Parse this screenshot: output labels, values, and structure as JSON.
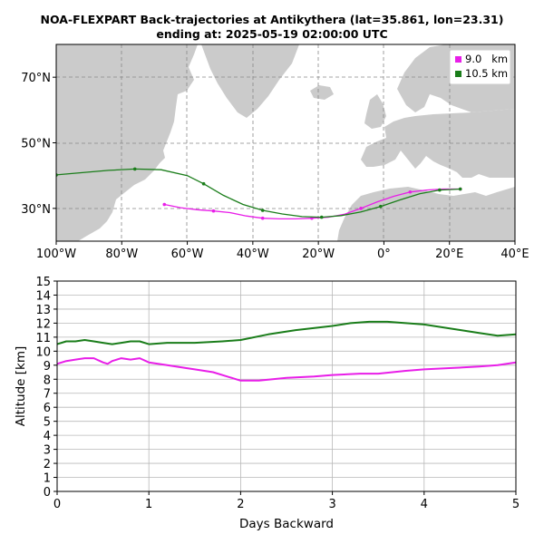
{
  "title_line1": "NOA-FLEXPART Back-trajectories at Antikythera (lat=35.861, lon=23.31)",
  "title_line2": "ending at: 2025-05-19  02:00:00 UTC",
  "colors": {
    "magenta": "#e81ee8",
    "green": "#1a7d1a",
    "land": "#cbcbcb",
    "grid": "#999999"
  },
  "chart_data": [
    {
      "type": "line",
      "subtype": "map trajectory",
      "xlim": [
        -100,
        40
      ],
      "ylim": [
        20,
        80
      ],
      "xticks": [
        -100,
        -80,
        -60,
        -40,
        -20,
        0,
        20,
        40
      ],
      "xtick_labels": [
        "100°W",
        "80°W",
        "60°W",
        "40°W",
        "20°W",
        "0°",
        "20°E",
        "40°E"
      ],
      "yticks": [
        30,
        50,
        70
      ],
      "ytick_labels": [
        "30°N",
        "50°N",
        "70°N"
      ],
      "grid": true,
      "legend_position": "top-right",
      "series": [
        {
          "name": "9.0   km",
          "color": "#e81ee8",
          "lon": [
            -67,
            -62,
            -57,
            -52,
            -47,
            -42,
            -37,
            -32,
            -27,
            -22,
            -17,
            -12,
            -7,
            -2,
            3,
            8,
            13,
            18,
            23.31
          ],
          "lat": [
            31.2,
            30.2,
            29.6,
            29.2,
            28.7,
            27.7,
            27.0,
            26.8,
            26.8,
            27.0,
            27.3,
            28.2,
            30.0,
            32.0,
            33.7,
            35.0,
            35.6,
            35.9,
            35.9
          ]
        },
        {
          "name": "10.5 km",
          "color": "#1a7d1a",
          "lon": [
            -100,
            -92,
            -84,
            -76,
            -68,
            -60,
            -55,
            -49,
            -43,
            -37,
            -31,
            -25,
            -19,
            -13,
            -7,
            -1,
            5,
            11,
            17,
            23.31
          ],
          "lat": [
            40.2,
            40.9,
            41.6,
            42.0,
            41.8,
            40.0,
            37.5,
            34.0,
            31.2,
            29.4,
            28.3,
            27.5,
            27.3,
            27.8,
            28.9,
            30.6,
            32.6,
            34.5,
            35.6,
            35.9
          ]
        }
      ]
    },
    {
      "type": "line",
      "xlabel": "Days Backward",
      "ylabel": "Altitude [km]",
      "xlim": [
        0,
        5
      ],
      "ylim": [
        0,
        15
      ],
      "xticks": [
        0,
        1,
        2,
        3,
        4,
        5
      ],
      "yticks": [
        0,
        1,
        2,
        3,
        4,
        5,
        6,
        7,
        8,
        9,
        10,
        11,
        12,
        13,
        14,
        15
      ],
      "grid": true,
      "series": [
        {
          "name": "9.0   km",
          "color": "#e81ee8",
          "x": [
            0,
            0.1,
            0.2,
            0.3,
            0.4,
            0.5,
            0.55,
            0.6,
            0.7,
            0.8,
            0.9,
            1.0,
            1.2,
            1.4,
            1.5,
            1.7,
            1.9,
            2.0,
            2.2,
            2.5,
            2.8,
            3.0,
            3.3,
            3.5,
            3.8,
            4.0,
            4.3,
            4.6,
            4.8,
            5.0
          ],
          "y": [
            9.1,
            9.3,
            9.4,
            9.5,
            9.5,
            9.2,
            9.1,
            9.3,
            9.5,
            9.4,
            9.5,
            9.2,
            9.0,
            8.8,
            8.7,
            8.5,
            8.1,
            7.9,
            7.9,
            8.1,
            8.2,
            8.3,
            8.4,
            8.4,
            8.6,
            8.7,
            8.8,
            8.9,
            9.0,
            9.2
          ]
        },
        {
          "name": "10.5 km",
          "color": "#1a7d1a",
          "x": [
            0,
            0.1,
            0.2,
            0.3,
            0.4,
            0.5,
            0.6,
            0.7,
            0.8,
            0.9,
            1.0,
            1.2,
            1.5,
            1.8,
            2.0,
            2.3,
            2.6,
            3.0,
            3.2,
            3.4,
            3.6,
            3.8,
            4.0,
            4.2,
            4.4,
            4.6,
            4.8,
            5.0
          ],
          "y": [
            10.5,
            10.7,
            10.7,
            10.8,
            10.7,
            10.6,
            10.5,
            10.6,
            10.7,
            10.7,
            10.5,
            10.6,
            10.6,
            10.7,
            10.8,
            11.2,
            11.5,
            11.8,
            12.0,
            12.1,
            12.1,
            12.0,
            11.9,
            11.7,
            11.5,
            11.3,
            11.1,
            11.2
          ]
        }
      ]
    }
  ]
}
